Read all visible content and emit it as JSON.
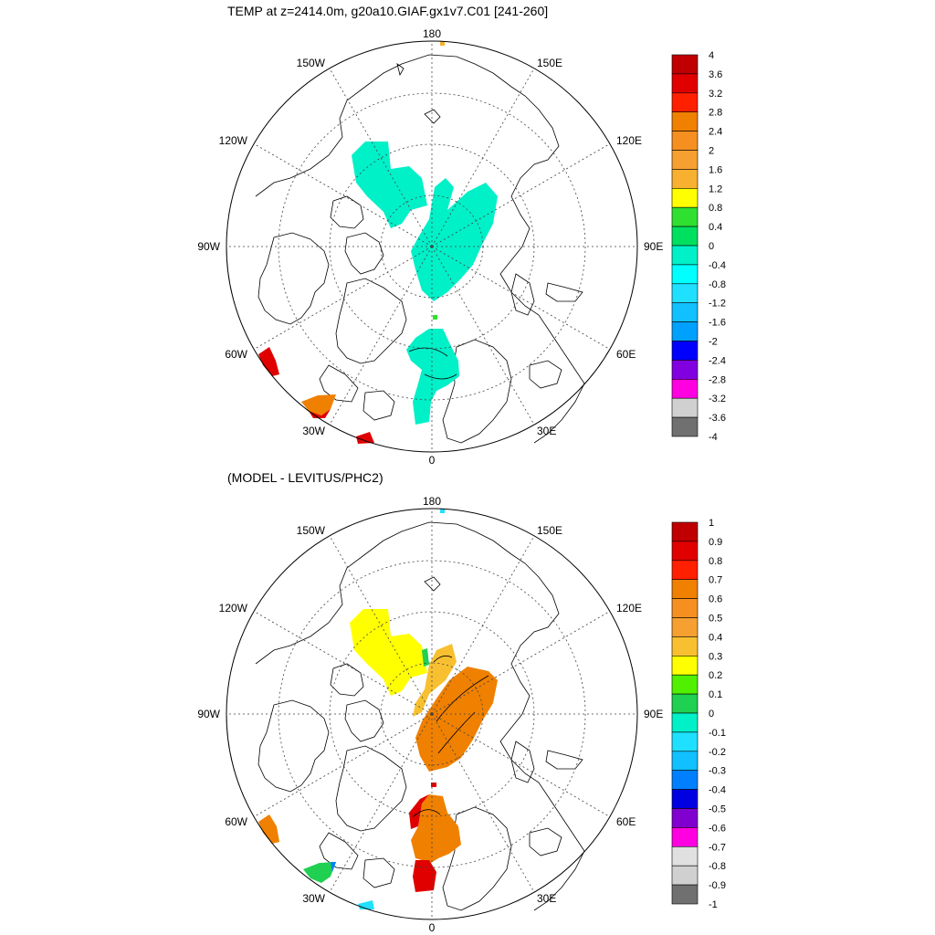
{
  "panel1": {
    "title": "TEMP at z=2414.0m, g20a10.GIAF.gx1v7.C01 [241-260]",
    "lon_labels": [
      "180",
      "150E",
      "120E",
      "90E",
      "60E",
      "30E",
      "0",
      "30W",
      "60W",
      "90W",
      "120W",
      "150W"
    ],
    "colorbar": {
      "labels": [
        "4",
        "3.6",
        "3.2",
        "2.8",
        "2.4",
        "2",
        "1.6",
        "1.2",
        "0.8",
        "0.4",
        "0",
        "-0.4",
        "-0.8",
        "-1.2",
        "-1.6",
        "-2",
        "-2.4",
        "-2.8",
        "-3.2",
        "-3.6",
        "-4"
      ],
      "colors": [
        "#c00000",
        "#e00000",
        "#ff2000",
        "#f08000",
        "#f59020",
        "#f5a030",
        "#f8b030",
        "#ffff00",
        "#30e030",
        "#00e060",
        "#00f0c8",
        "#00ffff",
        "#20e0ff",
        "#10c0ff",
        "#00a0ff",
        "#0000ff",
        "#8000e0",
        "#ff00e0",
        "#d0d0d0",
        "#707070"
      ]
    }
  },
  "panel2": {
    "title": "(MODEL - LEVITUS/PHC2)",
    "lon_labels": [
      "180",
      "150E",
      "120E",
      "90E",
      "60E",
      "30E",
      "0",
      "30W",
      "60W",
      "90W",
      "120W",
      "150W"
    ],
    "colorbar": {
      "labels": [
        "1",
        "0.9",
        "0.8",
        "0.7",
        "0.6",
        "0.5",
        "0.4",
        "0.3",
        "0.2",
        "0.1",
        "0",
        "-0.1",
        "-0.2",
        "-0.3",
        "-0.4",
        "-0.5",
        "-0.6",
        "-0.7",
        "-0.8",
        "-0.9",
        "-1"
      ],
      "colors": [
        "#c00000",
        "#e00000",
        "#ff2000",
        "#f08000",
        "#f59020",
        "#f5a030",
        "#f8c030",
        "#ffff00",
        "#50f000",
        "#20d050",
        "#00f0c8",
        "#20e0ff",
        "#10c0ff",
        "#0080ff",
        "#0000e0",
        "#8000d0",
        "#ff00e0",
        "#e0e0e0",
        "#d0d0d0",
        "#707070"
      ]
    }
  }
}
